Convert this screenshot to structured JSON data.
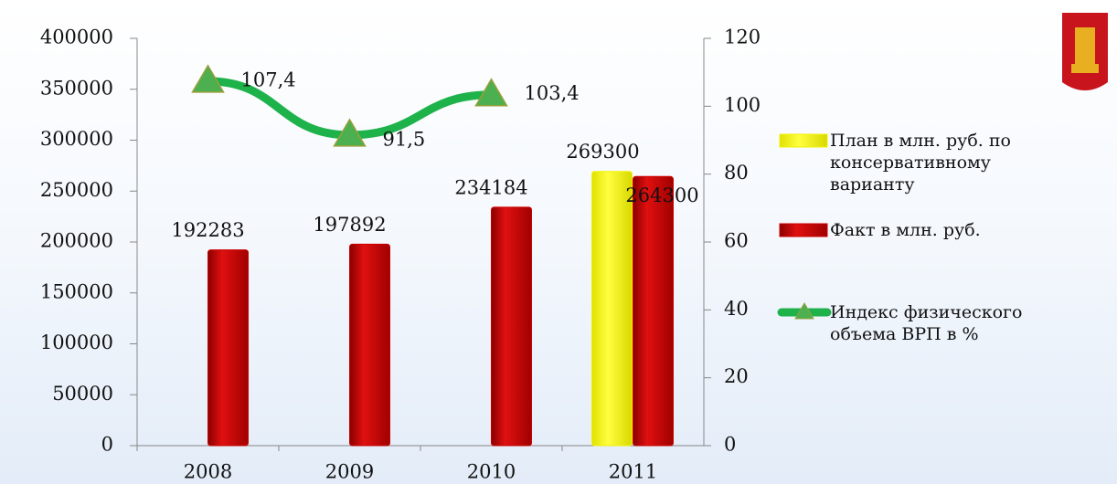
{
  "chart_data": {
    "type": "bar",
    "categories": [
      "2008",
      "2009",
      "2010",
      "2011"
    ],
    "series": [
      {
        "name": "План в млн. руб. по консервативному варианту",
        "color": "#f2f200",
        "values": [
          null,
          null,
          null,
          269300
        ]
      },
      {
        "name": "Факт в млн. руб.",
        "color": "#cc0000",
        "values": [
          192283,
          197892,
          234184,
          264300
        ]
      },
      {
        "name": "Индекс физического объема ВРП в %",
        "color": "#1eb24a",
        "type": "line",
        "axis": "y2",
        "values": [
          107.4,
          91.5,
          103.4,
          null
        ],
        "value_labels": [
          "107,4",
          "91,5",
          "103,4",
          null
        ]
      }
    ],
    "ylim": [
      0,
      400000
    ],
    "yticks": [
      0,
      50000,
      100000,
      150000,
      200000,
      250000,
      300000,
      350000,
      400000
    ],
    "y2lim": [
      0,
      120
    ],
    "y2ticks": [
      0,
      20,
      40,
      60,
      80,
      100,
      120
    ],
    "grid": false,
    "legend": "right"
  }
}
